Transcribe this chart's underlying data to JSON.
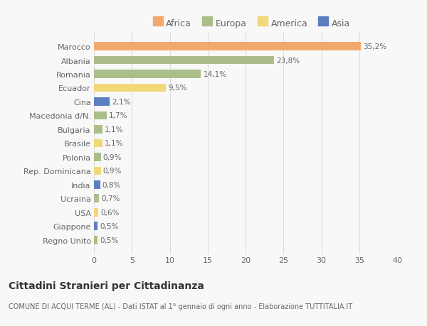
{
  "countries": [
    "Marocco",
    "Albania",
    "Romania",
    "Ecuador",
    "Cina",
    "Macedonia d/N.",
    "Bulgaria",
    "Brasile",
    "Polonia",
    "Rep. Dominicana",
    "India",
    "Ucraina",
    "USA",
    "Giappone",
    "Regno Unito"
  ],
  "values": [
    35.2,
    23.8,
    14.1,
    9.5,
    2.1,
    1.7,
    1.1,
    1.1,
    0.9,
    0.9,
    0.8,
    0.7,
    0.6,
    0.5,
    0.5
  ],
  "labels": [
    "35,2%",
    "23,8%",
    "14,1%",
    "9,5%",
    "2,1%",
    "1,7%",
    "1,1%",
    "1,1%",
    "0,9%",
    "0,9%",
    "0,8%",
    "0,7%",
    "0,6%",
    "0,5%",
    "0,5%"
  ],
  "continents": [
    "Africa",
    "Europa",
    "Europa",
    "America",
    "Asia",
    "Europa",
    "Europa",
    "America",
    "Europa",
    "America",
    "Asia",
    "Europa",
    "America",
    "Asia",
    "Europa"
  ],
  "colors": {
    "Africa": "#F2A96E",
    "Europa": "#ABBE8A",
    "America": "#F2D878",
    "Asia": "#5B7FC0"
  },
  "legend_order": [
    "Africa",
    "Europa",
    "America",
    "Asia"
  ],
  "xlim": [
    0,
    40
  ],
  "xticks": [
    0,
    5,
    10,
    15,
    20,
    25,
    30,
    35,
    40
  ],
  "title": "Cittadini Stranieri per Cittadinanza",
  "subtitle": "COMUNE DI ACQUI TERME (AL) - Dati ISTAT al 1° gennaio di ogni anno - Elaborazione TUTTITALIA.IT",
  "bg_color": "#F8F8F8",
  "bar_height": 0.6,
  "grid_color": "#DDDDDD",
  "text_color": "#666666",
  "label_fontsize": 7.5,
  "ytick_fontsize": 8,
  "xtick_fontsize": 8,
  "legend_fontsize": 9,
  "title_fontsize": 10,
  "subtitle_fontsize": 7
}
